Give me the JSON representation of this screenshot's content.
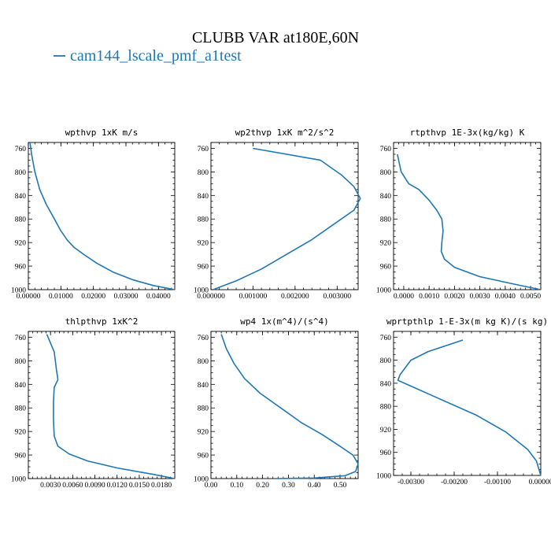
{
  "figure": {
    "title": "CLUBB VAR at180E,60N",
    "legend_label": "cam144_lscale_pmf_a1test",
    "legend_color": "#1f77b4"
  },
  "chart_data": [
    {
      "type": "line",
      "title": "wpthvp  1xK m/s",
      "ylim": [
        1000,
        750
      ],
      "yticks": [
        760,
        800,
        840,
        880,
        920,
        960,
        1000
      ],
      "xlim": [
        0,
        0.045
      ],
      "xticks": [
        0,
        0.01,
        0.02,
        0.03,
        0.04
      ],
      "xtick_labels": [
        "0.00000",
        "0.01000",
        "0.02000",
        "0.03000",
        "0.04000"
      ],
      "series": [
        {
          "name": "cam144_lscale_pmf_a1test",
          "x": [
            0.0005,
            0.001,
            0.002,
            0.0035,
            0.0055,
            0.008,
            0.01,
            0.012,
            0.014,
            0.017,
            0.021,
            0.026,
            0.032,
            0.0385,
            0.045
          ],
          "y": [
            750,
            770,
            800,
            830,
            855,
            880,
            900,
            916,
            928,
            940,
            955,
            970,
            983,
            993,
            1000
          ]
        }
      ]
    },
    {
      "type": "line",
      "title": "wp2thvp  1xK m^2/s^2",
      "ylim": [
        1000,
        750
      ],
      "yticks": [
        760,
        800,
        840,
        880,
        920,
        960,
        1000
      ],
      "xlim": [
        0,
        0.0035
      ],
      "xticks": [
        0,
        0.001,
        0.002,
        0.003
      ],
      "xtick_labels": [
        "0.000000",
        "0.001000",
        "0.002000",
        "0.003000"
      ],
      "series": [
        {
          "name": "cam144_lscale_pmf_a1test",
          "x": [
            0.001,
            0.0026,
            0.0031,
            0.0034,
            0.00355,
            0.0034,
            0.0029,
            0.0024,
            0.0018,
            0.0012,
            0.0006,
            5e-05
          ],
          "y": [
            760,
            780,
            805,
            825,
            845,
            865,
            890,
            915,
            940,
            965,
            985,
            1000
          ]
        }
      ]
    },
    {
      "type": "line",
      "title": "rtpthvp  1E-3x(kg/kg) K",
      "ylim": [
        1000,
        750
      ],
      "yticks": [
        760,
        800,
        840,
        880,
        920,
        960,
        1000
      ],
      "xlim": [
        -0.0004,
        0.0054
      ],
      "xticks": [
        0,
        0.001,
        0.002,
        0.003,
        0.004,
        0.005
      ],
      "xtick_labels": [
        "0.0000",
        "0.0010",
        "0.0020",
        "0.0030",
        "0.0040",
        "0.0050"
      ],
      "series": [
        {
          "name": "cam144_lscale_pmf_a1test",
          "x": [
            -0.00025,
            -0.0001,
            0.0002,
            0.0006,
            0.001,
            0.0013,
            0.0015,
            0.00155,
            0.0015,
            0.00148,
            0.0016,
            0.002,
            0.003,
            0.0045,
            0.0054
          ],
          "y": [
            770,
            800,
            820,
            830,
            848,
            865,
            880,
            900,
            920,
            935,
            948,
            962,
            978,
            992,
            1000
          ]
        }
      ]
    },
    {
      "type": "line",
      "title": "thlpthvp  1xK^2",
      "ylim": [
        1000,
        750
      ],
      "yticks": [
        760,
        800,
        840,
        880,
        920,
        960,
        1000
      ],
      "xlim": [
        0,
        0.0198
      ],
      "xticks": [
        0.003,
        0.006,
        0.009,
        0.012,
        0.015,
        0.018
      ],
      "xtick_labels": [
        "0.0030",
        "0.0060",
        "0.0090",
        "0.0120",
        "0.0150",
        "0.0180"
      ],
      "series": [
        {
          "name": "cam144_lscale_pmf_a1test",
          "x": [
            0.0025,
            0.0035,
            0.0038,
            0.004,
            0.0035,
            0.0034,
            0.0034,
            0.0035,
            0.004,
            0.0055,
            0.008,
            0.012,
            0.017,
            0.0198
          ],
          "y": [
            755,
            785,
            815,
            832,
            845,
            870,
            900,
            928,
            945,
            958,
            970,
            982,
            993,
            1000
          ]
        }
      ]
    },
    {
      "type": "line",
      "title": "wp4  1x(m^4)/(s^4)",
      "ylim": [
        1000,
        750
      ],
      "yticks": [
        760,
        800,
        840,
        880,
        920,
        960,
        1000
      ],
      "xlim": [
        0,
        0.57
      ],
      "xticks": [
        0,
        0.1,
        0.2,
        0.3,
        0.4,
        0.5
      ],
      "xtick_labels": [
        "0.00",
        "0.10",
        "0.20",
        "0.30",
        "0.40",
        "0.50"
      ],
      "series": [
        {
          "name": "cam144_lscale_pmf_a1test",
          "x": [
            0.04,
            0.06,
            0.09,
            0.13,
            0.19,
            0.27,
            0.35,
            0.43,
            0.5,
            0.55,
            0.57,
            0.56,
            0.52,
            0.4,
            0.25
          ],
          "y": [
            755,
            780,
            805,
            830,
            855,
            880,
            905,
            925,
            945,
            960,
            975,
            988,
            995,
            999,
            1000
          ]
        }
      ]
    },
    {
      "type": "line",
      "title": "wprtpthlp  1-E-3x(m kg K)/(s kg)",
      "ylim": [
        1000,
        750
      ],
      "yticks": [
        760,
        800,
        840,
        880,
        920,
        960,
        1000
      ],
      "xlim": [
        -0.0034,
        0
      ],
      "xticks": [
        -0.003,
        -0.002,
        -0.001,
        0
      ],
      "xtick_labels": [
        "-0.00300",
        "-0.00200",
        "-0.00100",
        "0.00000"
      ],
      "series": [
        {
          "name": "cam144_lscale_pmf_a1test",
          "x": [
            -0.0018,
            -0.0026,
            -0.003,
            -0.0031,
            -0.00325,
            -0.0033,
            -0.003,
            -0.0024,
            -0.0015,
            -0.0008,
            -0.0003,
            -0.0001,
            0.0
          ],
          "y": [
            765,
            785,
            800,
            810,
            825,
            835,
            845,
            865,
            895,
            925,
            955,
            975,
            1000
          ]
        }
      ]
    }
  ]
}
